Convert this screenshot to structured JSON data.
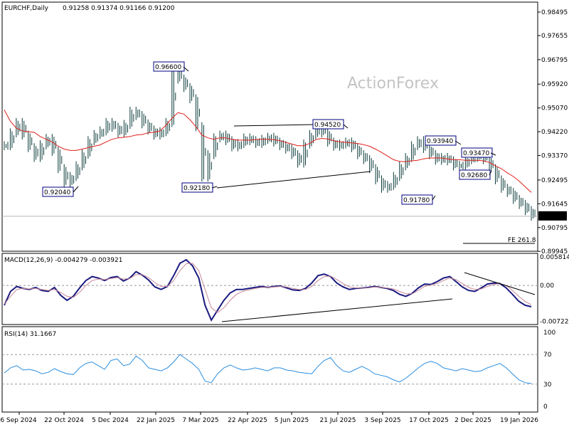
{
  "chart_data": {
    "type": "line",
    "symbol": "EURCHF",
    "timeframe": "Daily",
    "title_text": "EURCHF,Daily",
    "ohlc_text": "0.91258 0.91374 0.91166 0.91200",
    "watermark": "ActionForex",
    "x_axis_labels": [
      "6 Sep 2024",
      "22 Oct 2024",
      "5 Dec 2024",
      "22 Jan 2025",
      "7 Mar 2025",
      "22 Apr 2025",
      "5 Jun 2025",
      "21 Jul 2025",
      "3 Sep 2025",
      "17 Oct 2025",
      "2 Dec 2025",
      "19 Jan 2026"
    ],
    "price_panel": {
      "ylim": [
        0.8995,
        0.9885
      ],
      "ticks": [
        "0.98495",
        "0.97655",
        "0.96795",
        "0.95920",
        "0.95070",
        "0.94220",
        "0.93370",
        "0.92495",
        "0.91645",
        "0.90795",
        "0.89945"
      ],
      "last_price": "0.91200",
      "series": [
        {
          "name": "price",
          "color": "#0b3a3a",
          "values": [
            0.9372,
            0.9418,
            0.9455,
            0.941,
            0.9365,
            0.933,
            0.9375,
            0.9398,
            0.9352,
            0.929,
            0.924,
            0.9262,
            0.93,
            0.9342,
            0.939,
            0.9412,
            0.9425,
            0.9455,
            0.9438,
            0.9418,
            0.9448,
            0.9495,
            0.948,
            0.945,
            0.9428,
            0.941,
            0.9422,
            0.9455,
            0.964,
            0.961,
            0.958,
            0.954,
            0.944,
            0.926,
            0.934,
            0.94,
            0.941,
            0.939,
            0.9368,
            0.938,
            0.94,
            0.939,
            0.938,
            0.9395,
            0.9402,
            0.9385,
            0.9372,
            0.936,
            0.934,
            0.931,
            0.9378,
            0.9412,
            0.944,
            0.9418,
            0.9385,
            0.937,
            0.9378,
            0.9385,
            0.9365,
            0.934,
            0.9322,
            0.929,
            0.925,
            0.922,
            0.923,
            0.9262,
            0.93,
            0.933,
            0.9372,
            0.939,
            0.9362,
            0.934,
            0.932,
            0.933,
            0.9318,
            0.93,
            0.9302,
            0.9322,
            0.933,
            0.9345,
            0.9322,
            0.929,
            0.925,
            0.922,
            0.9205,
            0.918,
            0.9162,
            0.914,
            0.912
          ]
        },
        {
          "name": "MA",
          "color": "#e0201b",
          "values": [
            0.95,
            0.946,
            0.9435,
            0.9425,
            0.9422,
            0.942,
            0.9405,
            0.9395,
            0.9385,
            0.937,
            0.936,
            0.9355,
            0.9355,
            0.936,
            0.9365,
            0.937,
            0.9375,
            0.9385,
            0.9395,
            0.94,
            0.9402,
            0.9405,
            0.941,
            0.9412,
            0.9418,
            0.942,
            0.9425,
            0.9445,
            0.947,
            0.949,
            0.9485,
            0.9465,
            0.944,
            0.941,
            0.94,
            0.9395,
            0.94,
            0.94,
            0.9395,
            0.9392,
            0.9392,
            0.9392,
            0.9394,
            0.9395,
            0.9395,
            0.9394,
            0.939,
            0.9384,
            0.9378,
            0.9372,
            0.9372,
            0.938,
            0.9394,
            0.9398,
            0.9396,
            0.939,
            0.9386,
            0.9384,
            0.9382,
            0.938,
            0.9376,
            0.937,
            0.936,
            0.9348,
            0.9335,
            0.9322,
            0.9316,
            0.9315,
            0.9318,
            0.932,
            0.9325,
            0.9328,
            0.9328,
            0.9328,
            0.9325,
            0.9322,
            0.9322,
            0.932,
            0.932,
            0.932,
            0.9318,
            0.9312,
            0.93,
            0.929,
            0.9275,
            0.9262,
            0.9245,
            0.9225,
            0.9205
          ]
        }
      ],
      "annotations": [
        {
          "label": "0.96600",
          "value": 0.966
        },
        {
          "label": "0.92040",
          "value": 0.9204
        },
        {
          "label": "0.92180",
          "value": 0.9218
        },
        {
          "label": "0.94520",
          "value": 0.9452
        },
        {
          "label": "0.91780",
          "value": 0.9178
        },
        {
          "label": "0.93940",
          "value": 0.9394
        },
        {
          "label": "0.93470",
          "value": 0.9347
        },
        {
          "label": "0.92680",
          "value": 0.9268
        },
        {
          "label": "FE 261.8",
          "value": 0.9027
        }
      ]
    },
    "macd_panel": {
      "header": "MACD(12,26,9) -0.004279 -0.003921",
      "ylim": [
        -0.0079,
        0.0065
      ],
      "ticks": [
        "0.005814",
        "0.00",
        "-0.007222"
      ],
      "series": [
        {
          "name": "MACD",
          "color": "#1a1a80",
          "values": [
            -0.004,
            -0.0012,
            -0.0002,
            -0.0006,
            -0.0008,
            -0.0004,
            -0.001,
            -0.0012,
            -0.0004,
            -0.002,
            -0.003,
            -0.0022,
            -0.0005,
            0.001,
            0.0018,
            0.0015,
            0.001,
            0.0016,
            0.0018,
            0.0009,
            0.0015,
            0.0028,
            0.0021,
            0.0011,
            -0.0003,
            -0.0008,
            -0.0002,
            0.002,
            0.0045,
            0.0052,
            0.004,
            0.0015,
            -0.004,
            -0.007,
            -0.005,
            -0.003,
            -0.0015,
            -0.0008,
            -0.0008,
            -0.0006,
            -0.0004,
            -0.0002,
            -0.0004,
            -0.0002,
            -0.0001,
            -0.0005,
            -0.0009,
            -0.001,
            -0.0006,
            0.0005,
            0.002,
            0.0023,
            0.0018,
            0.0005,
            -0.0003,
            -0.0008,
            -0.0006,
            -0.0005,
            -0.0004,
            -0.0002,
            -0.0004,
            -0.0006,
            -0.001,
            -0.0018,
            -0.0022,
            -0.0016,
            -0.0005,
            0.0003,
            0.0002,
            0.0008,
            0.0015,
            0.0018,
            0.0008,
            -0.0003,
            -0.001,
            -0.0012,
            -0.0005,
            0.0003,
            0.0005,
            0.0004,
            -0.0005,
            -0.0018,
            -0.0032,
            -0.004,
            -0.0043
          ]
        },
        {
          "name": "Signal",
          "color": "#c88a96",
          "values": [
            -0.0038,
            -0.0022,
            -0.0008,
            -0.0006,
            -0.0007,
            -0.0006,
            -0.0008,
            -0.001,
            -0.0008,
            -0.0014,
            -0.0022,
            -0.0024,
            -0.0014,
            0.0,
            0.001,
            0.0013,
            0.0012,
            0.0014,
            0.0016,
            0.0013,
            0.0014,
            0.0022,
            0.0022,
            0.0016,
            0.0006,
            -0.0002,
            -0.0002,
            0.001,
            0.003,
            0.0044,
            0.0045,
            0.003,
            -0.0008,
            -0.0045,
            -0.0055,
            -0.0045,
            -0.003,
            -0.0018,
            -0.0012,
            -0.0009,
            -0.0006,
            -0.0004,
            -0.0004,
            -0.0003,
            -0.0002,
            -0.0003,
            -0.0006,
            -0.0008,
            -0.0008,
            -0.0002,
            0.001,
            0.0018,
            0.0019,
            0.0012,
            0.0004,
            -0.0003,
            -0.0005,
            -0.0005,
            -0.0005,
            -0.0003,
            -0.0004,
            -0.0005,
            -0.0007,
            -0.0012,
            -0.0017,
            -0.0017,
            -0.001,
            -0.0002,
            0.0001,
            0.0004,
            0.001,
            0.0015,
            0.0012,
            0.0004,
            -0.0004,
            -0.0008,
            -0.0007,
            -0.0002,
            0.0002,
            0.0004,
            0.0,
            -0.001,
            -0.0022,
            -0.0032,
            -0.0039
          ]
        }
      ]
    },
    "rsi_panel": {
      "header": "RSI(14) 31.1667",
      "ylim": [
        0,
        100
      ],
      "ticks": [
        "100",
        "70",
        "30",
        "0"
      ],
      "levels": [
        70,
        30
      ],
      "series": [
        {
          "name": "RSI",
          "color": "#2a8ee0",
          "values": [
            45,
            52,
            55,
            49,
            50,
            48,
            44,
            46,
            51,
            47,
            44,
            43,
            52,
            58,
            60,
            55,
            50,
            62,
            64,
            55,
            57,
            68,
            62,
            52,
            50,
            48,
            52,
            60,
            70,
            64,
            58,
            50,
            34,
            32,
            44,
            52,
            56,
            52,
            49,
            50,
            52,
            50,
            48,
            52,
            52,
            49,
            48,
            46,
            45,
            44,
            54,
            62,
            66,
            55,
            48,
            46,
            50,
            54,
            50,
            44,
            42,
            40,
            36,
            33,
            38,
            45,
            52,
            58,
            61,
            58,
            52,
            50,
            48,
            51,
            49,
            47,
            48,
            52,
            55,
            58,
            52,
            44,
            36,
            32,
            31
          ]
        }
      ]
    }
  }
}
